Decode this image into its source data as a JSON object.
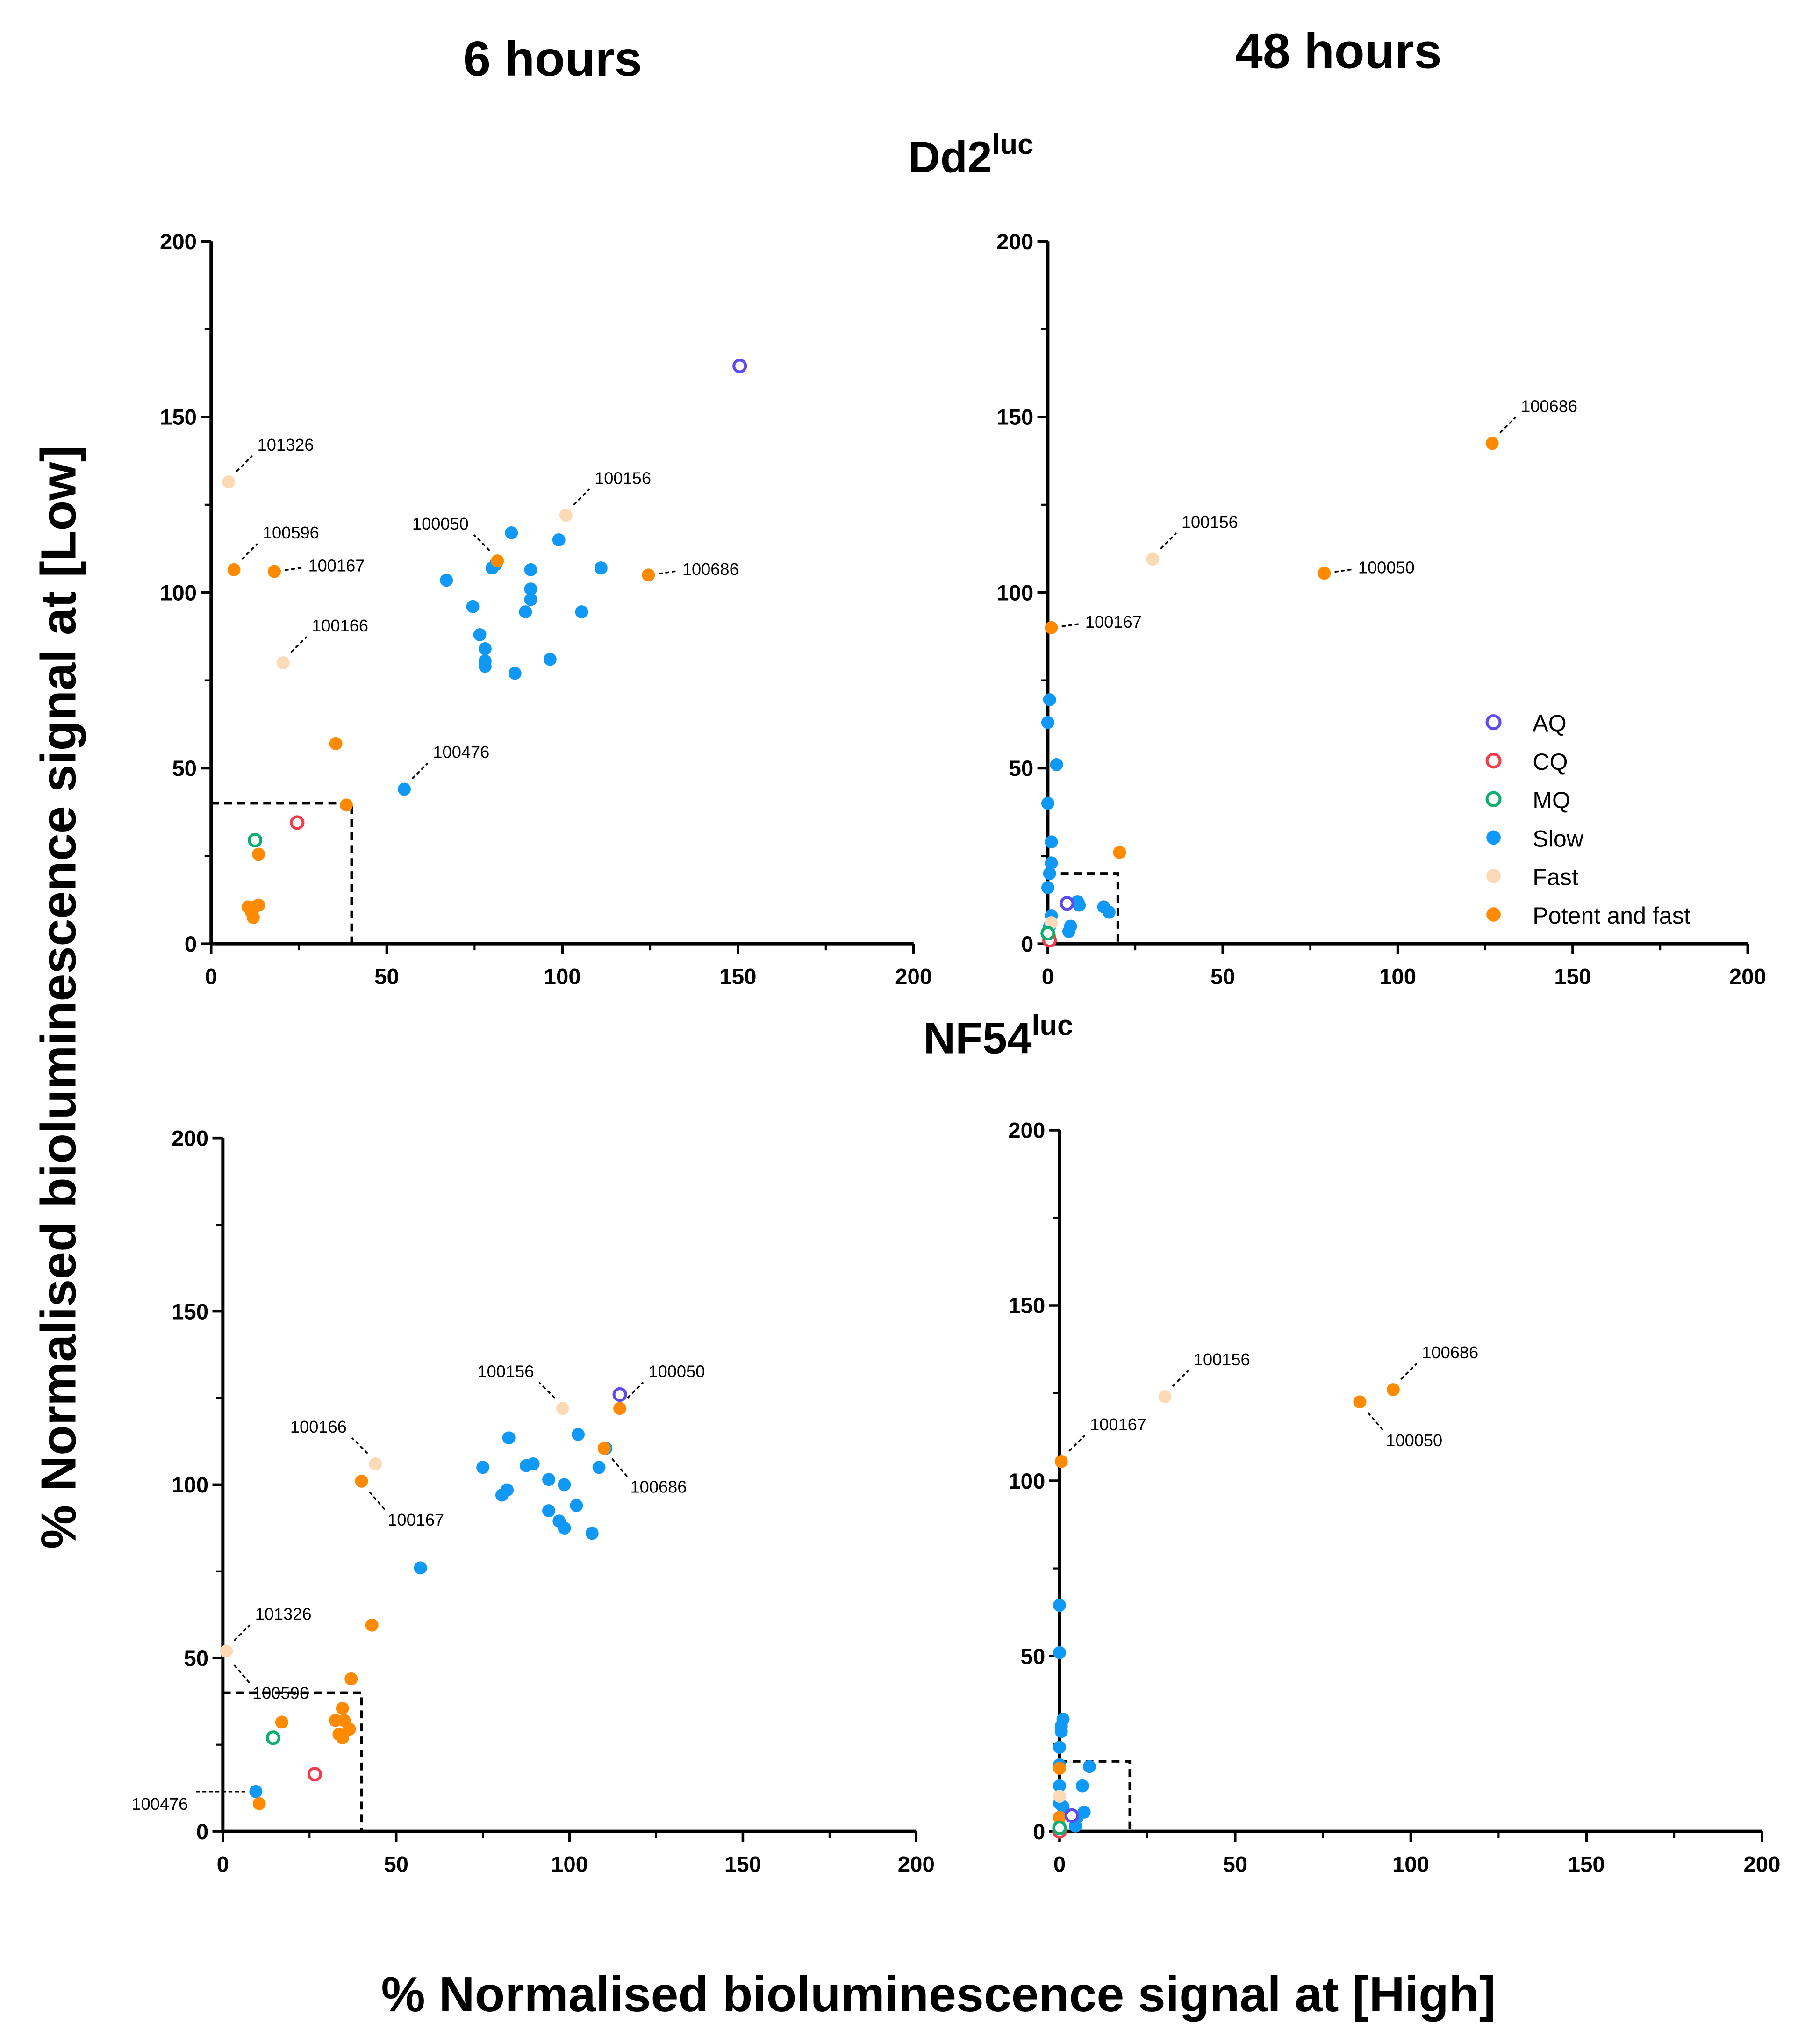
{
  "headers": {
    "col1": "6 hours",
    "col2": "48 hours"
  },
  "strains": {
    "top": {
      "base": "Dd2",
      "sup": "luc"
    },
    "bottom": {
      "base": "NF54",
      "sup": "luc"
    }
  },
  "ylabel": "% Normalised bioluminescence signal at [Low]",
  "xlabel": "% Normalised bioluminescence signal at [High]",
  "legend": [
    {
      "key": "AQ",
      "label": "AQ",
      "color": "#5B4BF0",
      "open": true
    },
    {
      "key": "CQ",
      "label": "CQ",
      "color": "#F53B4C",
      "open": true
    },
    {
      "key": "MQ",
      "label": "MQ",
      "color": "#0BAF6E",
      "open": true
    },
    {
      "key": "Slow",
      "label": "Slow",
      "color": "#0F98F5",
      "open": false
    },
    {
      "key": "Fast",
      "label": "Fast",
      "color": "#FDDAB6",
      "open": false
    },
    {
      "key": "Potent",
      "label": "Potent and fast",
      "color": "#FF8A00",
      "open": false
    }
  ],
  "chart_data": [
    {
      "type": "scatter",
      "id": "dd2-6h",
      "title": "Dd2luc 6 hours",
      "xlim": [
        0,
        200
      ],
      "ylim": [
        0,
        200
      ],
      "ticks": [
        0,
        50,
        100,
        150,
        200
      ],
      "threshold_box": 40,
      "series": {
        "AQ": [
          [
            150.5,
            164.5
          ]
        ],
        "CQ": [
          [
            24.5,
            34.5
          ]
        ],
        "MQ": [
          [
            12.5,
            29.5
          ]
        ],
        "Slow": [
          [
            55,
            44
          ],
          [
            67,
            103.5
          ],
          [
            74.5,
            96
          ],
          [
            76.5,
            88
          ],
          [
            78,
            84
          ],
          [
            78,
            80.5
          ],
          [
            78,
            79
          ],
          [
            80,
            107
          ],
          [
            81,
            108
          ],
          [
            85.5,
            117
          ],
          [
            86.5,
            77
          ],
          [
            89.5,
            94.5
          ],
          [
            91,
            106.5
          ],
          [
            91,
            101
          ],
          [
            91,
            98
          ],
          [
            96.5,
            81
          ],
          [
            99,
            115
          ],
          [
            105.5,
            94.5
          ],
          [
            111,
            107
          ]
        ],
        "Fast": [
          [
            5,
            131.5
          ],
          [
            20.5,
            80
          ],
          [
            101,
            122
          ]
        ],
        "Potent": [
          [
            6.5,
            106.5
          ],
          [
            18,
            106
          ],
          [
            35.5,
            57
          ],
          [
            38.5,
            39.5
          ],
          [
            81.5,
            109
          ],
          [
            124.5,
            105
          ],
          [
            13.5,
            25.5
          ],
          [
            10.5,
            10.5
          ],
          [
            12.5,
            10.5
          ],
          [
            13.5,
            11
          ],
          [
            12,
            7.5
          ],
          [
            11.5,
            9
          ]
        ]
      },
      "annotations": [
        {
          "text": "101326",
          "x": 5,
          "y": 131.5,
          "dir": "up-right"
        },
        {
          "text": "100596",
          "x": 6.5,
          "y": 106.5,
          "dir": "up-right"
        },
        {
          "text": "100167",
          "x": 18,
          "y": 106,
          "dir": "right"
        },
        {
          "text": "100166",
          "x": 20.5,
          "y": 80,
          "dir": "up-right"
        },
        {
          "text": "100050",
          "x": 81.5,
          "y": 109,
          "dir": "up-left"
        },
        {
          "text": "100156",
          "x": 101,
          "y": 122,
          "dir": "up-right"
        },
        {
          "text": "100686",
          "x": 124.5,
          "y": 105,
          "dir": "right"
        },
        {
          "text": "100476",
          "x": 55,
          "y": 44,
          "dir": "up-right"
        }
      ],
      "legend": false
    },
    {
      "type": "scatter",
      "id": "dd2-48h",
      "title": "Dd2luc 48 hours",
      "xlim": [
        0,
        200
      ],
      "ylim": [
        0,
        200
      ],
      "ticks": [
        0,
        50,
        100,
        150,
        200
      ],
      "threshold_box": 20,
      "series": {
        "Slow": [
          [
            0.5,
            69.5
          ],
          [
            0,
            63
          ],
          [
            2.5,
            51
          ],
          [
            0,
            40
          ],
          [
            1,
            29
          ],
          [
            1,
            23
          ],
          [
            0.5,
            20
          ],
          [
            0,
            16
          ],
          [
            8.5,
            12
          ],
          [
            9,
            11
          ],
          [
            16,
            10.5
          ],
          [
            17.5,
            9
          ],
          [
            6.5,
            5
          ],
          [
            6,
            3.5
          ],
          [
            1,
            8
          ],
          [
            0.5,
            5
          ]
        ],
        "Fast": [
          [
            30,
            109.5
          ],
          [
            1,
            6
          ]
        ],
        "Potent": [
          [
            127,
            142.5
          ],
          [
            79,
            105.5
          ],
          [
            1,
            90
          ],
          [
            20.5,
            26
          ],
          [
            0.5,
            2
          ]
        ],
        "AQ": [
          [
            5.5,
            11.5
          ]
        ],
        "CQ": [
          [
            0.5,
            1
          ]
        ],
        "MQ": [
          [
            0,
            3
          ]
        ]
      },
      "annotations": [
        {
          "text": "100686",
          "x": 127,
          "y": 142.5,
          "dir": "up-right"
        },
        {
          "text": "100156",
          "x": 30,
          "y": 109.5,
          "dir": "up-right"
        },
        {
          "text": "100050",
          "x": 79,
          "y": 105.5,
          "dir": "right"
        },
        {
          "text": "100167",
          "x": 1,
          "y": 90,
          "dir": "right"
        }
      ],
      "legend": true
    },
    {
      "type": "scatter",
      "id": "nf54-6h",
      "title": "NF54luc 6 hours",
      "xlim": [
        0,
        200
      ],
      "ylim": [
        0,
        200
      ],
      "ticks": [
        0,
        50,
        100,
        150,
        200
      ],
      "threshold_box": 40,
      "series": {
        "AQ": [
          [
            114.5,
            126
          ]
        ],
        "CQ": [
          [
            26.5,
            16.5
          ]
        ],
        "MQ": [
          [
            14.5,
            27
          ]
        ],
        "Slow": [
          [
            9.5,
            11.5
          ],
          [
            57,
            76
          ],
          [
            75,
            105
          ],
          [
            80.5,
            97
          ],
          [
            82.5,
            113.5
          ],
          [
            82,
            98.5
          ],
          [
            87.5,
            105.5
          ],
          [
            89.5,
            106
          ],
          [
            94,
            101.5
          ],
          [
            94,
            92.5
          ],
          [
            97,
            89.5
          ],
          [
            98.5,
            100
          ],
          [
            98.5,
            87.5
          ],
          [
            102,
            94
          ],
          [
            102.5,
            114.5
          ],
          [
            106.5,
            86
          ],
          [
            108.5,
            105
          ],
          [
            110.5,
            110.5
          ]
        ],
        "Fast": [
          [
            98,
            122
          ],
          [
            44,
            106
          ],
          [
            1,
            52
          ]
        ],
        "Potent": [
          [
            114.5,
            122
          ],
          [
            40,
            101
          ],
          [
            110,
            110.5
          ],
          [
            43,
            59.5
          ],
          [
            37,
            44
          ],
          [
            17,
            31.5
          ],
          [
            34.5,
            35.5
          ],
          [
            32.5,
            32
          ],
          [
            35,
            32
          ],
          [
            36.5,
            29.5
          ],
          [
            33.5,
            28
          ],
          [
            34.5,
            27
          ],
          [
            10.5,
            8
          ]
        ]
      },
      "annotations": [
        {
          "text": "100156",
          "x": 98,
          "y": 122,
          "dir": "up-left"
        },
        {
          "text": "100050",
          "x": 114.5,
          "y": 122,
          "dir": "up-right"
        },
        {
          "text": "100166",
          "x": 44,
          "y": 106,
          "dir": "up-left"
        },
        {
          "text": "100167",
          "x": 40,
          "y": 101,
          "dir": "down-right"
        },
        {
          "text": "100686",
          "x": 110,
          "y": 110.5,
          "dir": "down-right"
        },
        {
          "text": "101326",
          "x": 1,
          "y": 52,
          "dir": "up-right"
        },
        {
          "text": "100596",
          "x": 1,
          "y": 51,
          "dir": "down-right"
        },
        {
          "text": "100476",
          "x": 9.5,
          "y": 11.5,
          "dir": "left"
        }
      ],
      "legend": false
    },
    {
      "type": "scatter",
      "id": "nf54-48h",
      "title": "NF54luc 48 hours",
      "xlim": [
        0,
        200
      ],
      "ylim": [
        0,
        200
      ],
      "ticks": [
        0,
        50,
        100,
        150,
        200
      ],
      "threshold_box": 20,
      "series": {
        "Slow": [
          [
            0,
            64.5
          ],
          [
            0,
            51
          ],
          [
            1,
            32
          ],
          [
            0.5,
            30
          ],
          [
            0.5,
            28.5
          ],
          [
            0,
            24
          ],
          [
            0,
            19
          ],
          [
            8.5,
            18.5
          ],
          [
            0,
            13
          ],
          [
            6.5,
            13
          ],
          [
            7,
            5.5
          ],
          [
            5,
            4
          ],
          [
            0,
            8
          ],
          [
            4.5,
            1.5
          ],
          [
            1,
            7
          ]
        ],
        "Fast": [
          [
            30,
            124
          ],
          [
            0,
            10
          ]
        ],
        "Potent": [
          [
            95,
            126
          ],
          [
            85.5,
            122.5
          ],
          [
            0.5,
            105.5
          ],
          [
            0,
            18
          ],
          [
            0,
            4
          ]
        ],
        "AQ": [
          [
            3.5,
            4.5
          ]
        ],
        "CQ": [
          [
            0,
            0
          ]
        ],
        "MQ": [
          [
            0,
            1
          ]
        ]
      },
      "annotations": [
        {
          "text": "100156",
          "x": 30,
          "y": 124,
          "dir": "up-right"
        },
        {
          "text": "100686",
          "x": 95,
          "y": 126,
          "dir": "up-right"
        },
        {
          "text": "100050",
          "x": 85.5,
          "y": 122.5,
          "dir": "down-right"
        },
        {
          "text": "100167",
          "x": 0.5,
          "y": 105.5,
          "dir": "up-right"
        }
      ],
      "legend": false
    }
  ]
}
